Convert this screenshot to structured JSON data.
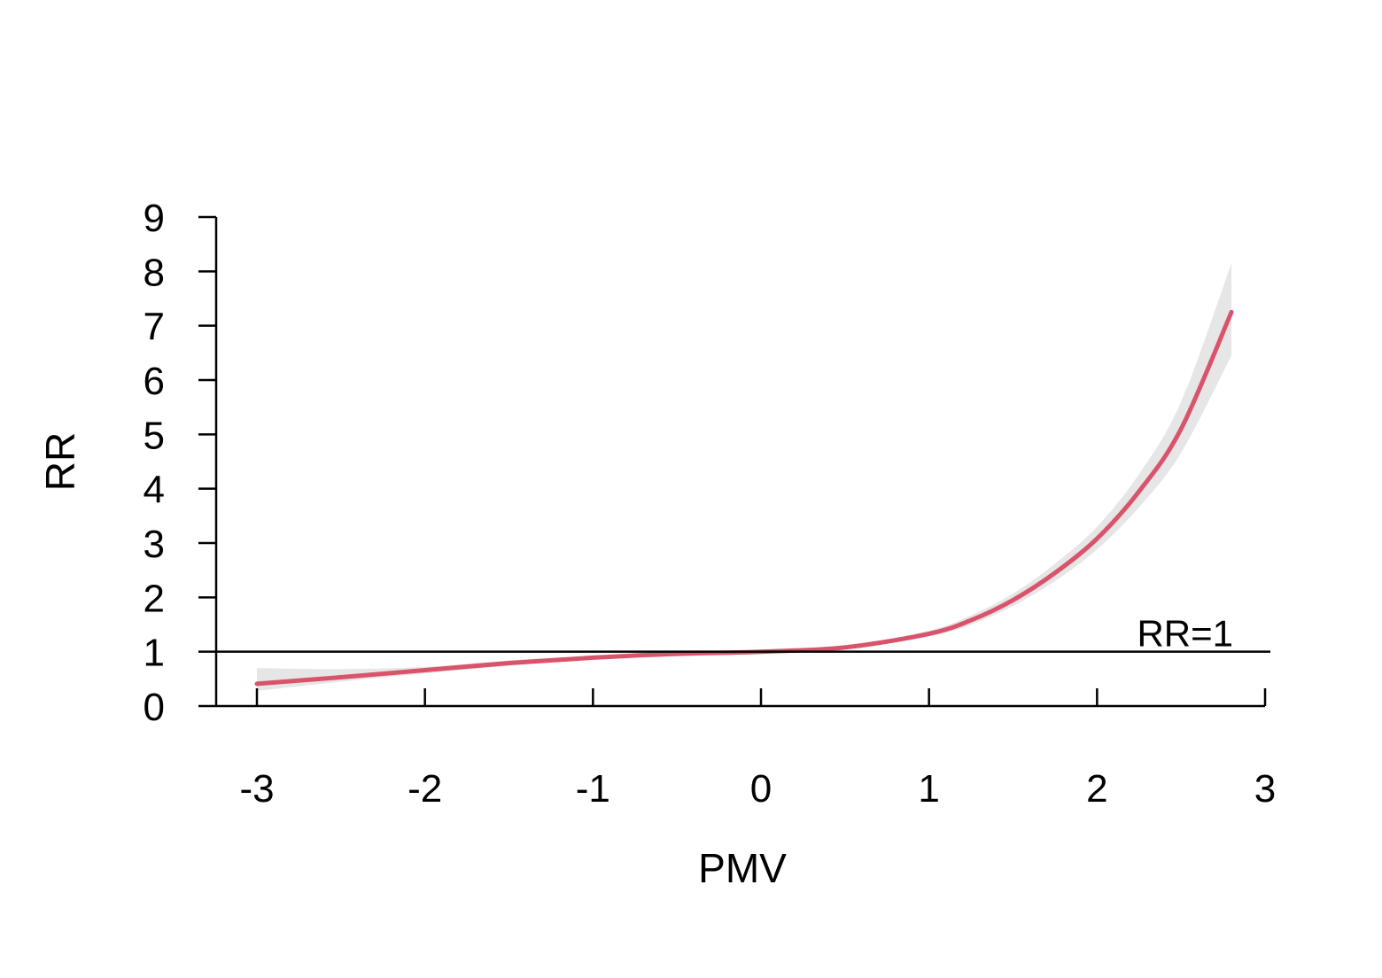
{
  "chart_data": {
    "type": "line",
    "title": "",
    "xlabel": "PMV",
    "ylabel": "RR",
    "xlim": [
      -3,
      3
    ],
    "ylim": [
      0,
      9
    ],
    "x_ticks": [
      "-3",
      "-2",
      "-1",
      "0",
      "1",
      "2",
      "3"
    ],
    "y_ticks": [
      "0",
      "1",
      "2",
      "3",
      "4",
      "5",
      "6",
      "7",
      "8",
      "9"
    ],
    "grid": false,
    "reference_line": {
      "y": 1,
      "label": "RR=1"
    },
    "series": [
      {
        "color": "#D9536B",
        "x": [
          -3.0,
          -2.5,
          -2.0,
          -1.5,
          -1.0,
          -0.5,
          0.0,
          0.5,
          1.0,
          1.25,
          1.5,
          1.75,
          2.0,
          2.25,
          2.5,
          2.8
        ],
        "y": [
          0.41,
          0.53,
          0.66,
          0.79,
          0.89,
          0.96,
          1.0,
          1.08,
          1.33,
          1.58,
          1.95,
          2.45,
          3.08,
          3.95,
          5.1,
          7.25
        ],
        "lower": [
          0.28,
          0.45,
          0.6,
          0.74,
          0.86,
          0.95,
          1.0,
          1.06,
          1.28,
          1.5,
          1.84,
          2.3,
          2.88,
          3.66,
          4.66,
          6.45
        ],
        "upper": [
          0.7,
          0.68,
          0.72,
          0.84,
          0.92,
          0.97,
          1.0,
          1.1,
          1.39,
          1.67,
          2.07,
          2.62,
          3.3,
          4.27,
          5.6,
          8.15
        ]
      }
    ],
    "colors": {
      "line": "#D9536B",
      "band": "#E6E6E6",
      "axis": "#000000"
    }
  }
}
